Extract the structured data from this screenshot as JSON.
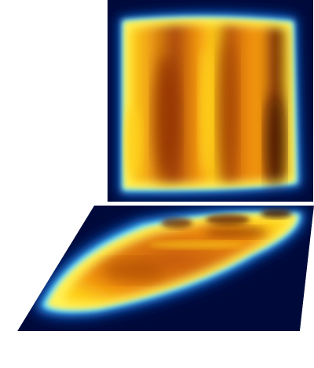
{
  "figure": {
    "panels": [
      {
        "name": "heatmap-panel-top",
        "view": "front"
      },
      {
        "name": "heatmap-panel-bottom",
        "view": "perspective-floor"
      }
    ],
    "colormap": [
      "#000a3a",
      "#0a2f8a",
      "#1f8ee0",
      "#7fe6ff",
      "#fff35a",
      "#ffd21a",
      "#f0900e",
      "#c65a0a",
      "#8a2c04",
      "#3a0a00"
    ],
    "background_color": "#000a3a",
    "paper_color": "#ffffff"
  }
}
